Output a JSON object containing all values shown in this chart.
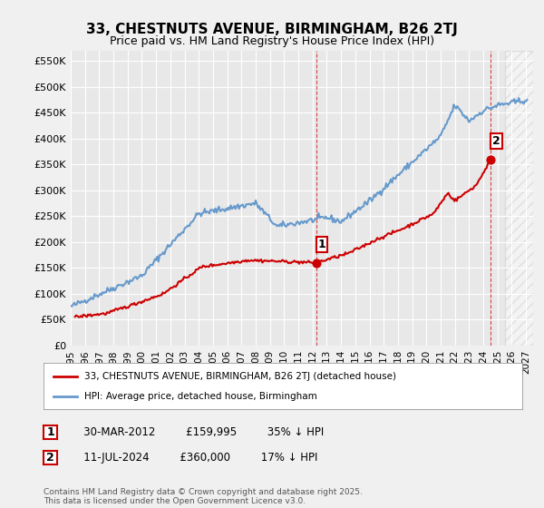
{
  "title": "33, CHESTNUTS AVENUE, BIRMINGHAM, B26 2TJ",
  "subtitle": "Price paid vs. HM Land Registry's House Price Index (HPI)",
  "ylabel_ticks": [
    "£0",
    "£50K",
    "£100K",
    "£150K",
    "£200K",
    "£250K",
    "£300K",
    "£350K",
    "£400K",
    "£450K",
    "£500K",
    "£550K"
  ],
  "ylim": [
    0,
    570000
  ],
  "xlim_start": 1995.0,
  "xlim_end": 2027.5,
  "bg_color": "#f0f0f0",
  "plot_bg_color": "#e8e8e8",
  "grid_color": "#ffffff",
  "red_color": "#cc0000",
  "blue_color": "#6699cc",
  "point1_x": 2012.25,
  "point1_y": 159995,
  "point1_label": "1",
  "point2_x": 2024.53,
  "point2_y": 360000,
  "point2_label": "2",
  "legend_line1": "33, CHESTNUTS AVENUE, BIRMINGHAM, B26 2TJ (detached house)",
  "legend_line2": "HPI: Average price, detached house, Birmingham",
  "table_row1": [
    "1",
    "30-MAR-2012",
    "£159,995",
    "35% ↓ HPI"
  ],
  "table_row2": [
    "2",
    "11-JUL-2024",
    "£360,000",
    "17% ↓ HPI"
  ],
  "footer": "Contains HM Land Registry data © Crown copyright and database right 2025.\nThis data is licensed under the Open Government Licence v3.0.",
  "vline1_x": 2012.25,
  "vline2_x": 2024.53,
  "hatch_start_x": 2025.5
}
